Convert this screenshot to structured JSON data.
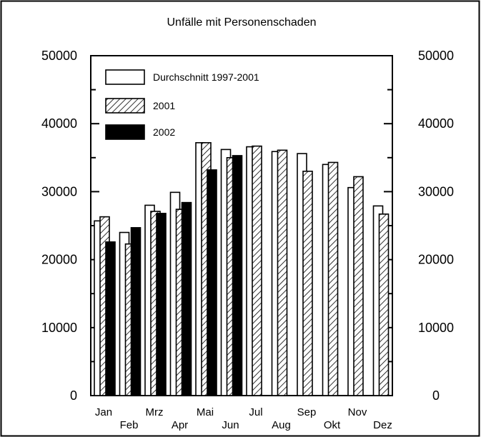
{
  "chart_data": {
    "type": "bar",
    "title": "Unfälle mit Personenschaden",
    "categories": [
      "Jan",
      "Feb",
      "Mrz",
      "Apr",
      "Mai",
      "Jun",
      "Jul",
      "Aug",
      "Sep",
      "Okt",
      "Nov",
      "Dez"
    ],
    "series": [
      {
        "name": "Durchschnitt 1997-2001",
        "fill": "white",
        "values": [
          25700,
          24000,
          28000,
          29900,
          37200,
          36200,
          36600,
          35900,
          35600,
          34000,
          30600,
          27900
        ]
      },
      {
        "name": "2001",
        "fill": "hatched",
        "values": [
          26300,
          22300,
          27100,
          27400,
          37200,
          35000,
          36700,
          36100,
          33000,
          34300,
          32200,
          26700
        ]
      },
      {
        "name": "2002",
        "fill": "black",
        "values": [
          22600,
          24700,
          26800,
          28400,
          33200,
          35300,
          null,
          null,
          null,
          null,
          null,
          null
        ]
      }
    ],
    "ylim": [
      0,
      50000
    ],
    "yticks": [
      "0",
      "10000",
      "20000",
      "30000",
      "40000",
      "50000"
    ],
    "y_axis_right": true,
    "legend": "top-left",
    "grid": false,
    "xlabel": "",
    "ylabel": ""
  }
}
